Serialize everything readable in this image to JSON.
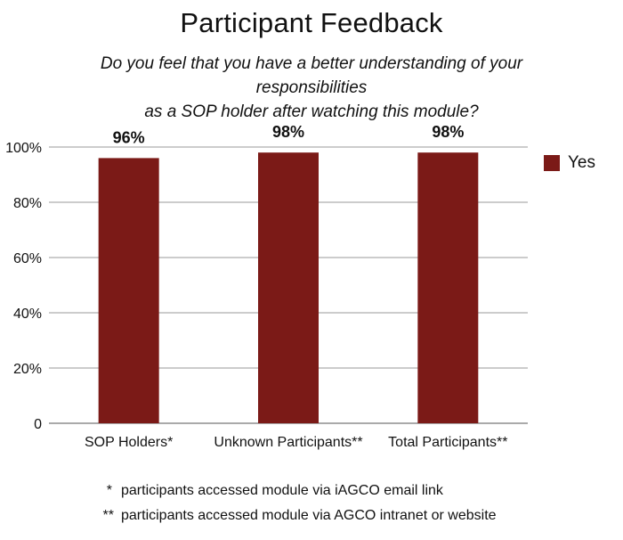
{
  "chart_data": {
    "type": "bar",
    "title": "Participant Feedback",
    "subtitle_lines": [
      "Do you feel that you have a better understanding of your responsibilities",
      "as a SOP holder after watching this module?"
    ],
    "categories": [
      "SOP Holders*",
      "Unknown Participants**",
      "Total Participants**"
    ],
    "series": [
      {
        "name": "Yes",
        "values": [
          96,
          98,
          98
        ],
        "color": "#7b1a17"
      }
    ],
    "data_labels": [
      "96%",
      "98%",
      "98%"
    ],
    "ylim": [
      0,
      100
    ],
    "yticks": [
      0,
      20,
      40,
      60,
      80,
      100
    ],
    "ytick_labels": [
      "0",
      "20%",
      "40%",
      "60%",
      "80%",
      "100%"
    ],
    "grid": true,
    "legend_position": "right"
  },
  "footnotes": [
    {
      "mark": "*",
      "text": "participants accessed module via iAGCO email link"
    },
    {
      "mark": "**",
      "text": "participants accessed module via AGCO intranet or website"
    }
  ]
}
